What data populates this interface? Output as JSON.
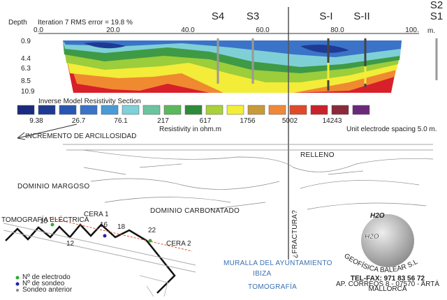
{
  "section": {
    "depth_label": "Depth",
    "iteration": "Iteration 7 RMS error = 19.8 %",
    "x_ticks": [
      "0.0",
      "20.0",
      "40.0",
      "60.0",
      "80.0",
      "100."
    ],
    "x_unit": "m.",
    "depth_ticks": [
      "0.9",
      "4.4",
      "6.3",
      "8.5",
      "10.9"
    ],
    "boreholes": [
      "S4",
      "S3",
      "S-I",
      "S-II",
      "S2",
      "S1"
    ],
    "legend_title": "Inverse Model Resistivity Section",
    "legend_values": [
      "9.38",
      "26.7",
      "76.1",
      "217",
      "617",
      "1756",
      "5002",
      "14243"
    ],
    "legend_unit": "Resistivity in ohm.m",
    "spacing": "Unit electrode spacing 5.0 m.",
    "clay_arrow": "INCREMENTO DE ARCILLOSIDAD"
  },
  "profile": {
    "fill": "RELLENO",
    "marl": "DOMINIO MARGOSO",
    "carbonate": "DOMINIO CARBONATADO",
    "fracture": "¿FRACTURA?"
  },
  "map": {
    "line_label": "TOMOGRAFÍA ELÉCTRICA",
    "electrodes": [
      "10",
      "16",
      "18",
      "22",
      "12"
    ],
    "legend": [
      "Nº de electrodo",
      "Nº de sondeo",
      "Sondeo anterior"
    ],
    "cera": [
      "CERA 1",
      "CERA 2"
    ]
  },
  "footer": {
    "place": "MURALLA DEL AYUNTAMIENTO",
    "city": "IBIZA",
    "method": "TOMOGRAFÍA"
  },
  "logo": {
    "mark": "H2O",
    "company": "GEOFÍSICA BALEAR S.L",
    "phone": "TEL-FAX: 971 83 56 72",
    "address": "AP. CORREOS 8 - 07570 - ARTÀ",
    "region": "MALLORCA"
  }
}
